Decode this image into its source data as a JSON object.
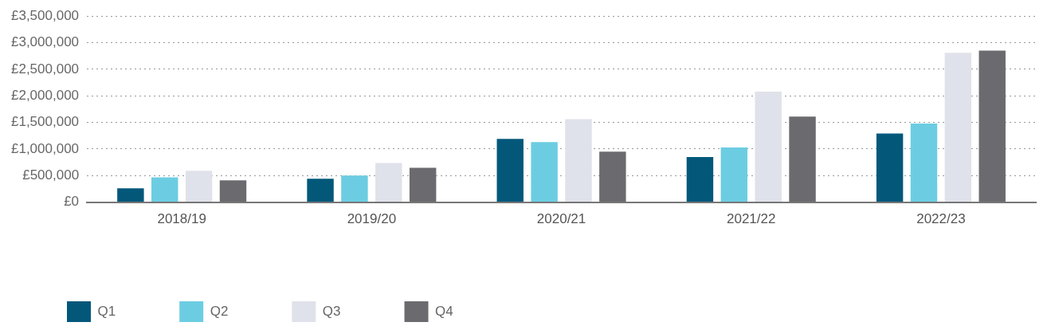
{
  "chart_data": {
    "type": "bar",
    "categories": [
      "2018/19",
      "2019/20",
      "2020/21",
      "2021/22",
      "2022/23"
    ],
    "series": [
      {
        "name": "Q1",
        "color": "#03587a",
        "values": [
          260000,
          440000,
          1190000,
          850000,
          1290000
        ]
      },
      {
        "name": "Q2",
        "color": "#6ccde2",
        "values": [
          465000,
          500000,
          1130000,
          1030000,
          1480000
        ]
      },
      {
        "name": "Q3",
        "color": "#dfe2ea",
        "values": [
          590000,
          735000,
          1560000,
          2080000,
          2810000
        ]
      },
      {
        "name": "Q4",
        "color": "#6b6b6f",
        "values": [
          410000,
          645000,
          950000,
          1610000,
          2850000
        ]
      }
    ],
    "ylim": [
      0,
      3500000
    ],
    "yticks": [
      {
        "value": 0,
        "label": "£0"
      },
      {
        "value": 500000,
        "label": "£500,000"
      },
      {
        "value": 1000000,
        "label": "£1,000,000"
      },
      {
        "value": 1500000,
        "label": "£1,500,000"
      },
      {
        "value": 2000000,
        "label": "£2,000,000"
      },
      {
        "value": 2500000,
        "label": "£2,500,000"
      },
      {
        "value": 3000000,
        "label": "£3,000,000"
      },
      {
        "value": 3500000,
        "label": "£3,500,000"
      }
    ],
    "grid": "y",
    "legend": "bottom left"
  }
}
